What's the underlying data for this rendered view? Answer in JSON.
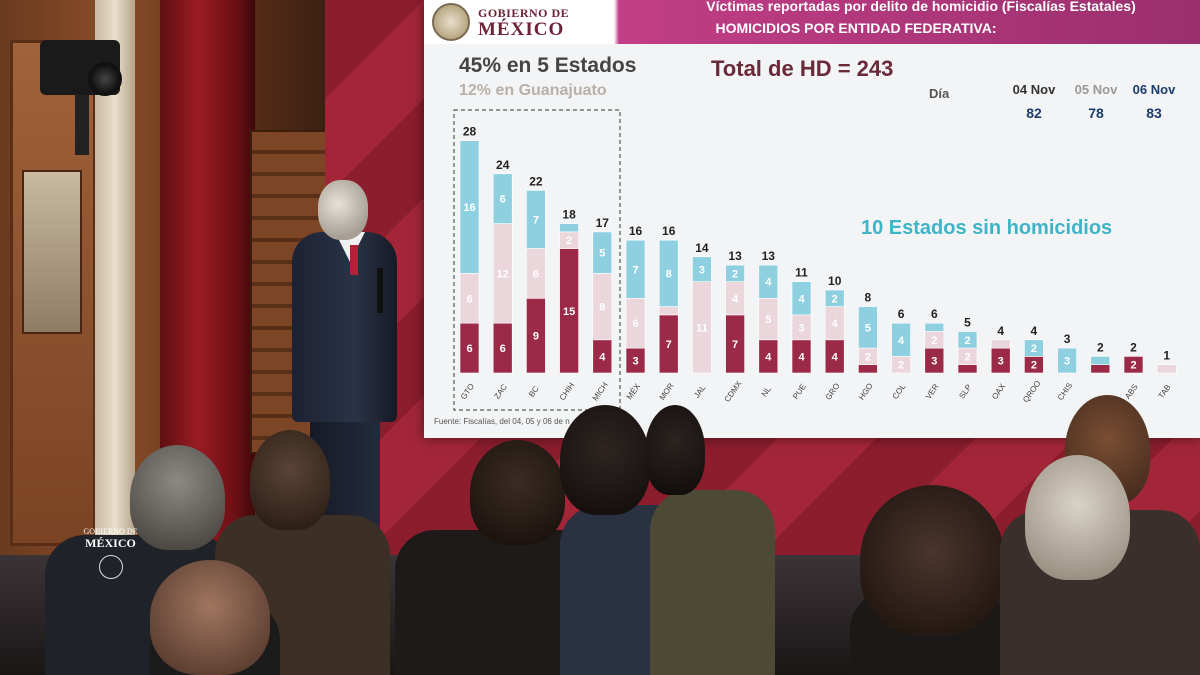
{
  "slide": {
    "logo": {
      "top": "GOBIERNO DE",
      "bottom": "MÉXICO"
    },
    "header_line1": "Víctimas reportadas por delito de homicidio (Fiscalías Estatales)",
    "header_line2": "HOMICIDIOS POR ENTIDAD FEDERATIVA:",
    "stat_main": "45% en 5 Estados",
    "stat_sub": "12% en Guanajuato",
    "stat_total": "Total de HD = 243",
    "dia_label": "Día",
    "days": [
      {
        "date": "04 Nov",
        "value": "82"
      },
      {
        "date": "05 Nov",
        "value": "78"
      },
      {
        "date": "06 Nov",
        "value": "83"
      }
    ],
    "sin_homicidios": "10 Estados sin homicidios",
    "source": "Fuente: Fiscalías, del 04, 05 y 06 de n"
  },
  "chart_data": {
    "type": "bar",
    "stacked": true,
    "categories": [
      "GTO",
      "ZAC",
      "BC",
      "CHIH",
      "MICH",
      "MÉX",
      "MOR",
      "JAL",
      "CDMX",
      "NL",
      "PUE",
      "GRO",
      "HGO",
      "COL",
      "VER",
      "SLP",
      "OAX",
      "QROO",
      "CHIS",
      "",
      "ABS",
      "TAB"
    ],
    "totals": [
      28,
      24,
      22,
      18,
      17,
      16,
      16,
      14,
      13,
      13,
      11,
      10,
      8,
      6,
      6,
      5,
      4,
      4,
      3,
      2,
      2,
      1
    ],
    "series": [
      {
        "color": "#9b2a48",
        "values": [
          6,
          6,
          9,
          15,
          4,
          3,
          7,
          0,
          7,
          4,
          4,
          4,
          1,
          0,
          3,
          1,
          3,
          2,
          0,
          1,
          2,
          0
        ]
      },
      {
        "color": "#ead6db",
        "values": [
          6,
          12,
          6,
          2,
          8,
          6,
          1,
          11,
          4,
          5,
          3,
          4,
          2,
          2,
          2,
          2,
          1,
          0,
          0,
          0,
          0,
          1
        ]
      },
      {
        "color": "#8fd0e0",
        "values": [
          16,
          6,
          7,
          1,
          5,
          7,
          8,
          3,
          2,
          4,
          4,
          2,
          5,
          4,
          1,
          2,
          0,
          2,
          3,
          1,
          0,
          0
        ]
      }
    ],
    "highlight_group": [
      "GTO",
      "ZAC",
      "BC",
      "CHIH",
      "MICH"
    ]
  },
  "watermark": {
    "top": "GOBIERNO DE",
    "bottom": "MÉXICO"
  }
}
